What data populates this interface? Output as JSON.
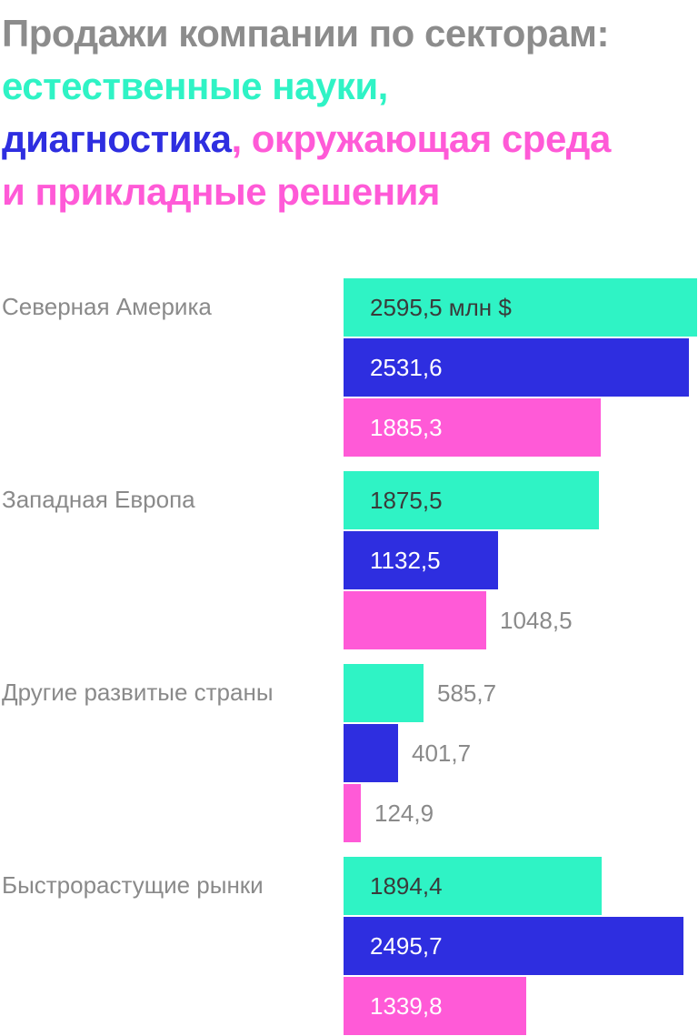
{
  "title": {
    "part1": "Продажи компании по секторам:",
    "part2": "естественные науки,",
    "part3": "диагностика",
    "part4": ",",
    "part5": "окружающая среда",
    "part6": "и прикладные решения"
  },
  "colors": {
    "title_gray": "#8c8c8c",
    "life_sciences": "#2ff3c5",
    "diagnostics": "#2e2ee0",
    "environmental": "#ff5ad7"
  },
  "chart_data": {
    "type": "bar",
    "orientation": "horizontal",
    "unit_label": "млн $",
    "categories": [
      "Северная Америка",
      "Западная Европа",
      "Другие развитые страны",
      "Быстрорастущие рынки"
    ],
    "series": [
      {
        "name": "естественные науки",
        "values": [
          2595.5,
          1875.5,
          585.7,
          1894.4
        ],
        "labels": [
          "2595,5 млн $",
          "1875,5",
          "585,7",
          "1894,4"
        ]
      },
      {
        "name": "диагностика",
        "values": [
          2531.6,
          1132.5,
          401.7,
          2495.7
        ],
        "labels": [
          "2531,6",
          "1132,5",
          "401,7",
          "2495,7"
        ]
      },
      {
        "name": "окружающая среда и прикладные решения",
        "values": [
          1885.3,
          1048.5,
          124.9,
          1339.8
        ],
        "labels": [
          "1885,3",
          "1048,5",
          "124,9",
          "1339,8"
        ]
      }
    ],
    "xlim": [
      0,
      2600
    ],
    "grid": false,
    "legend": "none"
  }
}
